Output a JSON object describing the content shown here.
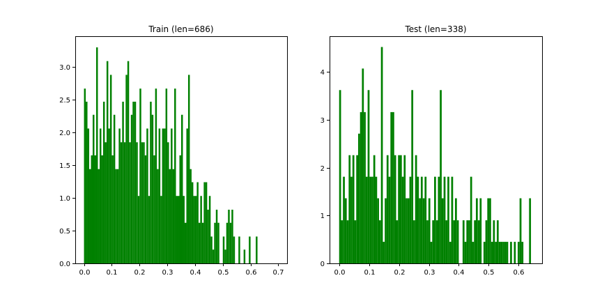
{
  "chart_data": [
    {
      "type": "histogram",
      "title": "Train (len=686)",
      "xlabel": "",
      "ylabel": "",
      "bar_color": "#008000",
      "grid": false,
      "xlim": [
        -0.0315,
        0.7315
      ],
      "ylim": [
        0,
        3.47
      ],
      "xticks": [
        0.0,
        0.1,
        0.2,
        0.3,
        0.4,
        0.5,
        0.6,
        0.7
      ],
      "xtick_labels": [
        "0.0",
        "0.1",
        "0.2",
        "0.3",
        "0.4",
        "0.5",
        "0.6",
        "0.7"
      ],
      "yticks": [
        0.0,
        0.5,
        1.0,
        1.5,
        2.0,
        2.5,
        3.0
      ],
      "ytick_labels": [
        "0.0",
        "0.5",
        "1.0",
        "1.5",
        "2.0",
        "2.5",
        "3.0"
      ],
      "bin_start": 0.0,
      "bin_width": 0.00625,
      "values": [
        2.67,
        2.47,
        2.06,
        1.44,
        1.65,
        2.27,
        1.65,
        3.3,
        1.44,
        2.06,
        1.65,
        2.47,
        1.85,
        3.09,
        2.06,
        2.88,
        1.65,
        2.27,
        1.44,
        1.44,
        2.06,
        1.85,
        2.47,
        1.85,
        2.88,
        3.09,
        1.85,
        2.27,
        2.47,
        2.47,
        1.85,
        1.03,
        2.67,
        1.85,
        1.85,
        1.65,
        2.06,
        1.03,
        2.47,
        2.27,
        1.65,
        2.67,
        1.44,
        2.06,
        1.03,
        2.06,
        2.06,
        2.67,
        1.85,
        1.44,
        2.06,
        1.44,
        2.67,
        1.03,
        1.03,
        1.65,
        2.27,
        1.03,
        0.62,
        2.06,
        2.88,
        1.44,
        1.24,
        1.03,
        1.03,
        1.24,
        0.62,
        1.03,
        0.62,
        1.24,
        1.24,
        0.82,
        1.03,
        0.41,
        0.21,
        0.62,
        0.82,
        0.62,
        0.0,
        0.0,
        0.41,
        0.21,
        0.62,
        0.82,
        0.62,
        0.82,
        0.41,
        0.0,
        0.0,
        0.41,
        0.0,
        0.0,
        0.21,
        0.0,
        0.0,
        0.41,
        0.0,
        0.0,
        0.0,
        0.41
      ]
    },
    {
      "type": "histogram",
      "title": "Test (len=338)",
      "xlabel": "",
      "ylabel": "",
      "bar_color": "#008000",
      "grid": false,
      "xlim": [
        -0.032,
        0.6785
      ],
      "ylim": [
        0,
        4.745
      ],
      "xticks": [
        0.0,
        0.1,
        0.2,
        0.3,
        0.4,
        0.5,
        0.6
      ],
      "xtick_labels": [
        "0.0",
        "0.1",
        "0.2",
        "0.3",
        "0.4",
        "0.5",
        "0.6"
      ],
      "yticks": [
        0,
        1,
        2,
        3,
        4
      ],
      "ytick_labels": [
        "0",
        "1",
        "2",
        "3",
        "4"
      ],
      "bin_start": 0.0,
      "bin_width": 0.00635,
      "values": [
        3.62,
        0.9,
        1.81,
        1.36,
        0.9,
        2.26,
        1.81,
        2.26,
        0.9,
        2.26,
        2.71,
        3.16,
        4.07,
        3.16,
        1.81,
        3.62,
        1.81,
        1.81,
        2.26,
        1.81,
        1.36,
        0.9,
        4.52,
        0.45,
        1.36,
        2.26,
        1.81,
        3.16,
        3.16,
        2.26,
        0.9,
        2.26,
        2.26,
        1.81,
        2.26,
        1.36,
        1.36,
        1.81,
        3.62,
        0.9,
        2.26,
        1.81,
        1.36,
        1.81,
        1.36,
        1.81,
        0.9,
        1.36,
        0.45,
        0.9,
        1.81,
        0.9,
        1.81,
        3.62,
        1.36,
        1.81,
        0.9,
        1.81,
        0.45,
        1.81,
        0.9,
        1.36,
        0.9,
        0.0,
        0.0,
        0.9,
        0.45,
        0.9,
        0.9,
        1.81,
        0.45,
        0.9,
        1.36,
        0.9,
        1.36,
        0.0,
        0.45,
        0.9,
        1.36,
        1.36,
        0.45,
        0.9,
        0.45,
        0.9,
        0.45,
        0.45,
        0.45,
        0.45,
        0.45,
        0.0,
        0.45,
        0.0,
        0.45,
        0.0,
        0.45,
        1.36,
        0.45,
        0.0,
        0.0,
        0.0,
        1.36
      ]
    }
  ]
}
